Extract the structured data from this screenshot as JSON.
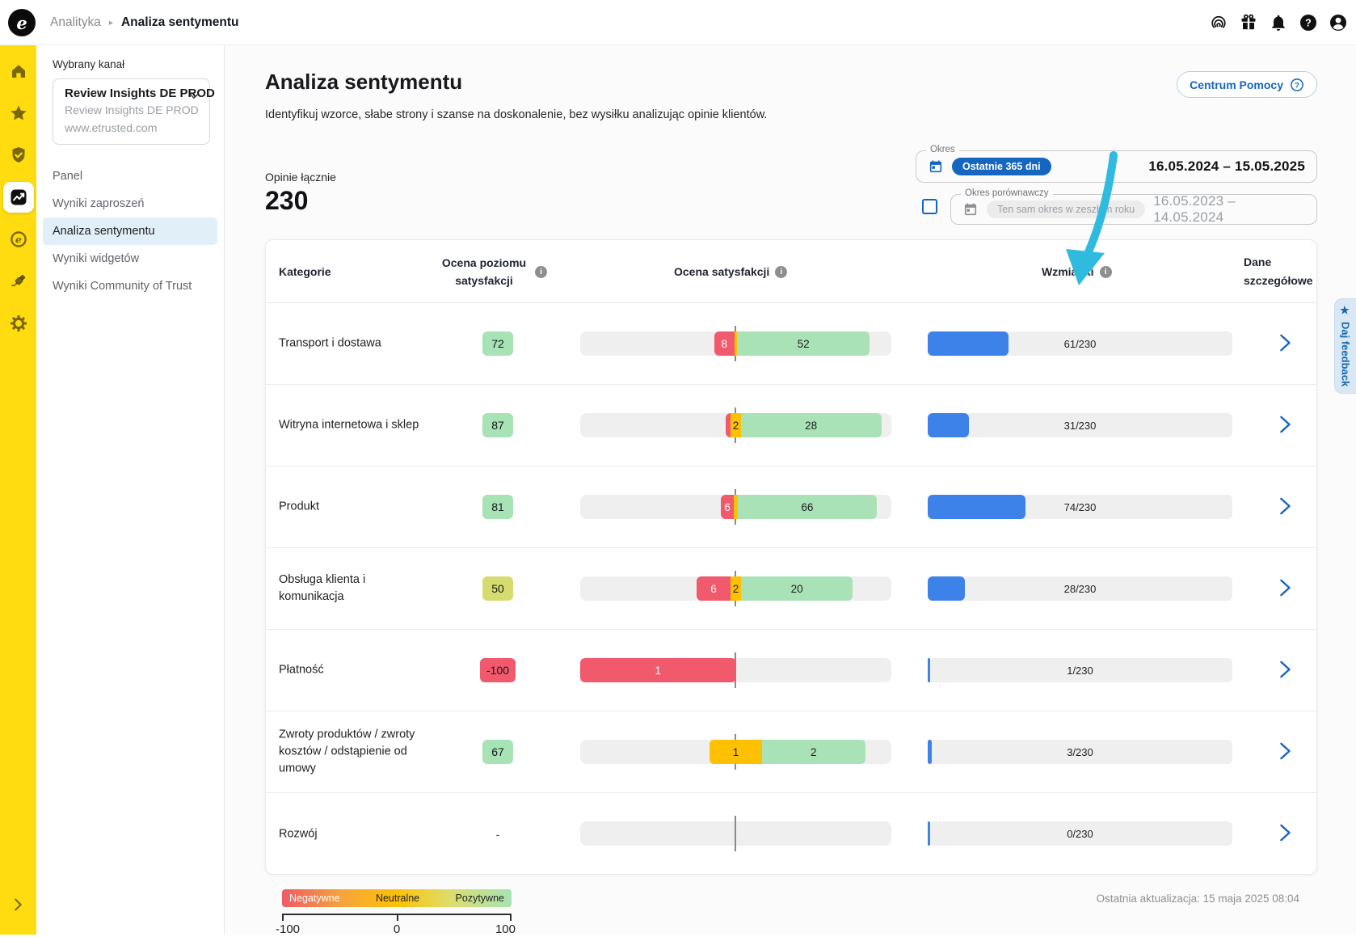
{
  "topbar": {
    "logo_letter": "e",
    "breadcrumb": {
      "section": "Analityka",
      "separator": "▸",
      "current": "Analiza sentymentu"
    },
    "icons": [
      {
        "name": "fingerprint-icon"
      },
      {
        "name": "gift-icon"
      },
      {
        "name": "bell-icon"
      },
      {
        "name": "help-icon"
      },
      {
        "name": "account-icon"
      }
    ]
  },
  "rail": {
    "items": [
      {
        "icon": "home-icon",
        "active": false
      },
      {
        "icon": "star-icon",
        "active": false
      },
      {
        "icon": "shield-check-icon",
        "active": false
      },
      {
        "icon": "analytics-icon",
        "active": true
      },
      {
        "icon": "etrusted-icon",
        "active": false
      },
      {
        "icon": "plug-icon",
        "active": false
      },
      {
        "icon": "settings-gear-icon",
        "active": false
      }
    ],
    "expand_icon": "chevron-right-icon"
  },
  "sidebar": {
    "label": "Wybrany kanał",
    "channel_selector": {
      "title": "Review Insights DE PROD",
      "subtitle": "Review Insights DE PROD",
      "url": "www.etrusted.com"
    },
    "items": [
      {
        "label": "Panel",
        "active": false
      },
      {
        "label": "Wyniki zaproszeń",
        "active": false
      },
      {
        "label": "Analiza sentymentu",
        "active": true
      },
      {
        "label": "Wyniki widgetów",
        "active": false
      },
      {
        "label": "Wyniki Community of Trust",
        "active": false
      }
    ]
  },
  "page": {
    "title": "Analiza sentymentu",
    "subtitle": "Identyfikuj wzorce, słabe strony i szanse na doskonalenie, bez wysiłku analizując opinie klientów.",
    "help_button": "Centrum Pomocy"
  },
  "summary": {
    "label": "Opinie łącznie",
    "value": "230"
  },
  "period": {
    "label": "Okres",
    "preset": "Ostatnie 365 dni",
    "range": "16.05.2024 – 15.05.2025",
    "comparison_label": "Okres porównawczy",
    "comparison_placeholder": "Ten sam okres w zeszłym roku",
    "comparison_range": "16.05.2023 – 14.05.2024",
    "comparison_checked": false
  },
  "table": {
    "columns": {
      "category": "Kategorie",
      "score": "Ocena poziomu satysfakcji",
      "sentiment": "Ocena satysfakcji",
      "mentions": "Wzmianki",
      "details": "Dane szczegółowe"
    },
    "total_reviews": 230,
    "rows": [
      {
        "category": "Transport i dostawa",
        "score": "72",
        "score_level": "positive",
        "negative": 8,
        "neutral": 1,
        "positive": 52,
        "mentions": 61,
        "mentions_label": "61/230"
      },
      {
        "category": "Witryna internetowa i sklep",
        "score": "87",
        "score_level": "positive",
        "negative": 1,
        "neutral": 2,
        "positive": 28,
        "mentions": 31,
        "mentions_label": "31/230"
      },
      {
        "category": "Produkt",
        "score": "81",
        "score_level": "positive",
        "negative": 6,
        "neutral": 2,
        "positive": 66,
        "mentions": 74,
        "mentions_label": "74/230"
      },
      {
        "category": "Obsługa klienta i komunikacja",
        "score": "50",
        "score_level": "neutral",
        "negative": 6,
        "neutral": 2,
        "positive": 20,
        "mentions": 28,
        "mentions_label": "28/230"
      },
      {
        "category": "Płatność",
        "score": "-100",
        "score_level": "negative",
        "negative": 1,
        "neutral": 0,
        "positive": 0,
        "mentions": 1,
        "mentions_label": "1/230"
      },
      {
        "category": "Zwroty produktów / zwroty kosztów / odstąpienie od umowy",
        "score": "67",
        "score_level": "positive",
        "negative": 0,
        "neutral": 1,
        "positive": 2,
        "mentions": 3,
        "mentions_label": "3/230"
      },
      {
        "category": "Rozwój",
        "score": "-",
        "score_level": "none",
        "negative": 0,
        "neutral": 0,
        "positive": 0,
        "mentions": 0,
        "mentions_label": "0/230"
      }
    ]
  },
  "legend": {
    "negative": "Negatywne",
    "neutral": "Neutralne",
    "positive": "Pozytywne",
    "min": "-100",
    "mid": "0",
    "max": "100"
  },
  "footer": {
    "last_update": "Ostatnia aktualizacja: 15 maja 2025 08:04"
  },
  "feedback_tab": {
    "star": "★",
    "label": "Daj feedback"
  },
  "colors": {
    "brand_yellow": "#FFDC0F",
    "accent_blue": "#1565C0",
    "mentions_bar": "#3D82E9",
    "negative": "#F1596C",
    "neutral": "#FDC101",
    "positive": "#A9E2B6",
    "neutral_badge": "#D6DB70",
    "arrow_cyan": "#2FBBDD"
  }
}
